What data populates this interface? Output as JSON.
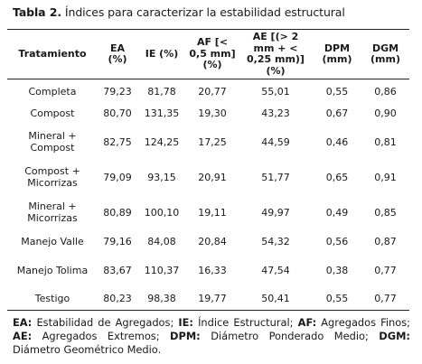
{
  "caption": {
    "label": "Tabla 2.",
    "text": "Índices para caracterizar la estabilidad estructural"
  },
  "table": {
    "headers": [
      "Tratamiento",
      "EA (%)",
      "IE (%)",
      "AF [< 0,5 mm] (%)",
      "AE [(> 2 mm + < 0,25 mm)] (%)",
      "DPM (mm)",
      "DGM (mm)"
    ],
    "rows": [
      [
        "Completa",
        "79,23",
        "81,78",
        "20,77",
        "55,01",
        "0,55",
        "0,86"
      ],
      [
        "Compost",
        "80,70",
        "131,35",
        "19,30",
        "43,23",
        "0,67",
        "0,90"
      ],
      [
        "Mineral + Compost",
        "82,75",
        "124,25",
        "17,25",
        "44,59",
        "0,46",
        "0,81"
      ],
      [
        "Compost + Micorrizas",
        "79,09",
        "93,15",
        "20,91",
        "51,77",
        "0,65",
        "0,91"
      ],
      [
        "Mineral + Micorrizas",
        "80,89",
        "100,10",
        "19,11",
        "49,97",
        "0,49",
        "0,85"
      ],
      [
        "Manejo Valle",
        "79,16",
        "84,08",
        "20,84",
        "54,32",
        "0,56",
        "0,87"
      ],
      [
        "Manejo Tolima",
        "83,67",
        "110,37",
        "16,33",
        "47,54",
        "0,38",
        "0,77"
      ],
      [
        "Testigo",
        "80,23",
        "98,38",
        "19,77",
        "50,41",
        "0,55",
        "0,77"
      ]
    ]
  },
  "footnote": [
    {
      "abbr": "EA:",
      "text": " Estabilidad de Agregados; "
    },
    {
      "abbr": "IE:",
      "text": " Índice Estructural; "
    },
    {
      "abbr": "AF:",
      "text": " Agregados Finos; "
    },
    {
      "abbr": "AE:",
      "text": " Agregados Extremos; "
    },
    {
      "abbr": "DPM:",
      "text": " Diámetro Ponderado Medio; "
    },
    {
      "abbr": "DGM:",
      "text": " Diámetro Geométrico Medio."
    }
  ]
}
